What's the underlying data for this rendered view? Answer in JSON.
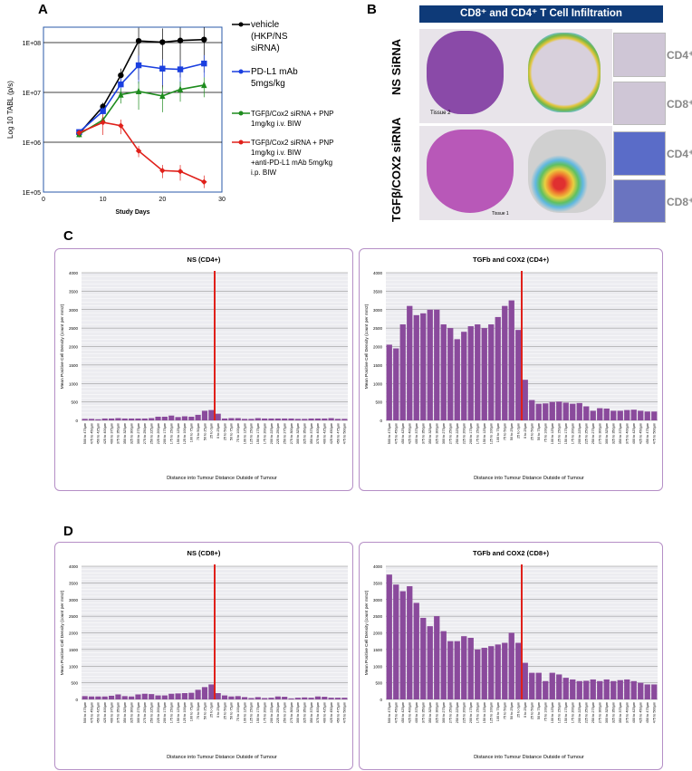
{
  "panel_labels": {
    "a": "A",
    "b": "B",
    "c": "C",
    "d": "D"
  },
  "panel_b": {
    "header": "CD8⁺ and CD4⁺ T Cell Infiltration",
    "rows": [
      "NS SiRNA",
      "TGFβ/COX2 siRNA"
    ],
    "tissue_labels": [
      "Tissue 2",
      "Tissue 1"
    ],
    "marker_labels": [
      "CD4⁺",
      "CD8⁺",
      "CD4⁺",
      "CD8⁺"
    ],
    "colors": {
      "header": "#0e3a78",
      "he_stain": "#a04aa8"
    }
  },
  "chart_data": [
    {
      "type": "line",
      "panel": "A",
      "xlabel": "Study Days",
      "ylabel": "Log 10 TABL (p/s)",
      "yscale": "log",
      "xlim": [
        0,
        30
      ],
      "ylim": [
        100000,
        200000000
      ],
      "xticks": [
        "0",
        "10",
        "20",
        "30"
      ],
      "yticks": [
        "1E+05",
        "1E+06",
        "1E+07",
        "1E+08"
      ],
      "grid": "horizontal",
      "legend": "right",
      "x": [
        6,
        10,
        13,
        16,
        20,
        23,
        27
      ],
      "series": [
        {
          "name": "vehicle (HKP/NS siRNA)",
          "color": "#000000",
          "marker": "circle",
          "values": [
            1500000,
            5200000,
            22000000,
            108000000,
            102000000,
            110000000,
            115000000
          ],
          "err": [
            200000,
            1000000,
            8000000,
            90000000,
            90000000,
            90000000,
            90000000
          ]
        },
        {
          "name": "PD-L1 mAb 5mgs/kg",
          "color": "#1a3fe0",
          "marker": "square",
          "values": [
            1600000,
            4200000,
            14500000,
            35000000,
            30000000,
            29000000,
            38000000
          ],
          "err": [
            200000,
            800000,
            5000000,
            20000000,
            16000000,
            16000000,
            18000000
          ]
        },
        {
          "name": "TGFβ/Cox2 siRNA + PNP 1mg/kg i.v. BIW",
          "color": "#1e8c1e",
          "marker": "triangle",
          "values": [
            1450000,
            2800000,
            9000000,
            10500000,
            8500000,
            11500000,
            14000000
          ],
          "err": [
            200000,
            500000,
            3000000,
            6000000,
            4500000,
            5000000,
            6000000
          ]
        },
        {
          "name": "TGFβ/Cox2 siRNA + PNP 1mg/kg i.v. BIW +anti-PD-L1 mAb 5mg/kg i.p. BIW",
          "color": "#e0201a",
          "marker": "diamond",
          "values": [
            1550000,
            2500000,
            2150000,
            670000,
            270000,
            260000,
            160000
          ],
          "err": [
            200000,
            1100000,
            700000,
            170000,
            80000,
            90000,
            55000
          ]
        }
      ]
    },
    {
      "type": "bar",
      "panel": "C",
      "title": "NS (CD4+)",
      "xlabel": "Distance into Tumour  Distance Outside of Tumour",
      "ylabel": "Mean Positive Cell Density (count per mm2)",
      "ylim": [
        0,
        4000
      ],
      "yticks": [
        "0",
        "500",
        "1000",
        "1500",
        "2000",
        "2500",
        "3000",
        "3500",
        "4000"
      ],
      "boundary_after": 20,
      "values": [
        40,
        40,
        30,
        50,
        50,
        60,
        50,
        50,
        50,
        50,
        60,
        100,
        100,
        130,
        90,
        110,
        100,
        150,
        260,
        280,
        180,
        50,
        60,
        60,
        40,
        40,
        60,
        50,
        50,
        50,
        50,
        50,
        40,
        40,
        50,
        50,
        50,
        60,
        40,
        40
      ]
    },
    {
      "type": "bar",
      "panel": "C",
      "title": "TGFb and COX2 (CD4+)",
      "xlabel": "Distance into Tumour  Distance Outside of Tumour",
      "ylabel": "Mean Positive Cell Density (count per mm2)",
      "ylim": [
        0,
        4000
      ],
      "yticks": [
        "0",
        "500",
        "1000",
        "1500",
        "2000",
        "2500",
        "3000",
        "3500",
        "4000"
      ],
      "boundary_after": 20,
      "values": [
        2050,
        1950,
        2600,
        3100,
        2850,
        2900,
        3000,
        3000,
        2600,
        2500,
        2200,
        2400,
        2550,
        2600,
        2500,
        2600,
        2800,
        3100,
        3250,
        2450,
        1100,
        550,
        450,
        460,
        500,
        510,
        480,
        450,
        470,
        380,
        260,
        330,
        320,
        260,
        260,
        280,
        290,
        260,
        240,
        240
      ]
    },
    {
      "type": "bar",
      "panel": "D",
      "title": "NS (CD8+)",
      "xlabel": "Distance into Tumour  Distance Outside of Tumour",
      "ylabel": "Mean Positive Cell Density (count per mm2)",
      "ylim": [
        0,
        4000
      ],
      "yticks": [
        "0",
        "500",
        "1000",
        "1500",
        "2000",
        "2500",
        "3000",
        "3500",
        "4000"
      ],
      "boundary_after": 20,
      "values": [
        100,
        90,
        90,
        90,
        110,
        150,
        100,
        90,
        150,
        170,
        160,
        120,
        120,
        170,
        180,
        190,
        200,
        290,
        370,
        450,
        190,
        120,
        90,
        100,
        70,
        40,
        70,
        40,
        50,
        90,
        80,
        30,
        50,
        60,
        50,
        90,
        80,
        50,
        50,
        50
      ]
    },
    {
      "type": "bar",
      "panel": "D",
      "title": "TGFb and COX2 (CD8+)",
      "xlabel": "Distance into Tumour  Distance Outside of Tumour",
      "ylabel": "Mean Positive Cell Density (count per mm2)",
      "ylim": [
        0,
        4000
      ],
      "yticks": [
        "0",
        "500",
        "1000",
        "1500",
        "2000",
        "2500",
        "3000",
        "3500",
        "4000"
      ],
      "boundary_after": 20,
      "values": [
        3750,
        3450,
        3250,
        3400,
        2900,
        2450,
        2200,
        2500,
        2050,
        1750,
        1750,
        1900,
        1850,
        1500,
        1550,
        1600,
        1650,
        1700,
        2000,
        1700,
        1100,
        800,
        800,
        550,
        800,
        750,
        650,
        600,
        550,
        560,
        600,
        550,
        600,
        550,
        580,
        600,
        550,
        500,
        450,
        450
      ]
    }
  ],
  "bar_categories": [
    "500 to 475µm",
    "475 to 450µm",
    "450 to 425µm",
    "425 to 400µm",
    "400 to 375µm",
    "375 to 350µm",
    "350 to 325µm",
    "325 to 300µm",
    "300 to 275µm",
    "275 to 250µm",
    "250 to 225µm",
    "225 to 200µm",
    "200 to 175µm",
    "175 to 150µm",
    "150 to 125µm",
    "125 to 100µm",
    "100 to 75µm",
    "75 to 50µm",
    "50 to 25µm",
    "25 to 0µm",
    "0 to 25µm",
    "25 to 50µm",
    "50 to 75µm",
    "75 to 100µm",
    "100 to 125µm",
    "125 to 150µm",
    "150 to 175µm",
    "175 to 200µm",
    "200 to 225µm",
    "225 to 250µm",
    "250 to 275µm",
    "275 to 300µm",
    "300 to 325µm",
    "325 to 350µm",
    "350 to 375µm",
    "375 to 400µm",
    "400 to 425µm",
    "425 to 450µm",
    "450 to 475µm",
    "475 to 500µm"
  ],
  "bar_colors": {
    "bar": "#8a4a9c",
    "boundary": "#e0201a",
    "plot_bg": "#ececf0",
    "grid": "#888888"
  }
}
